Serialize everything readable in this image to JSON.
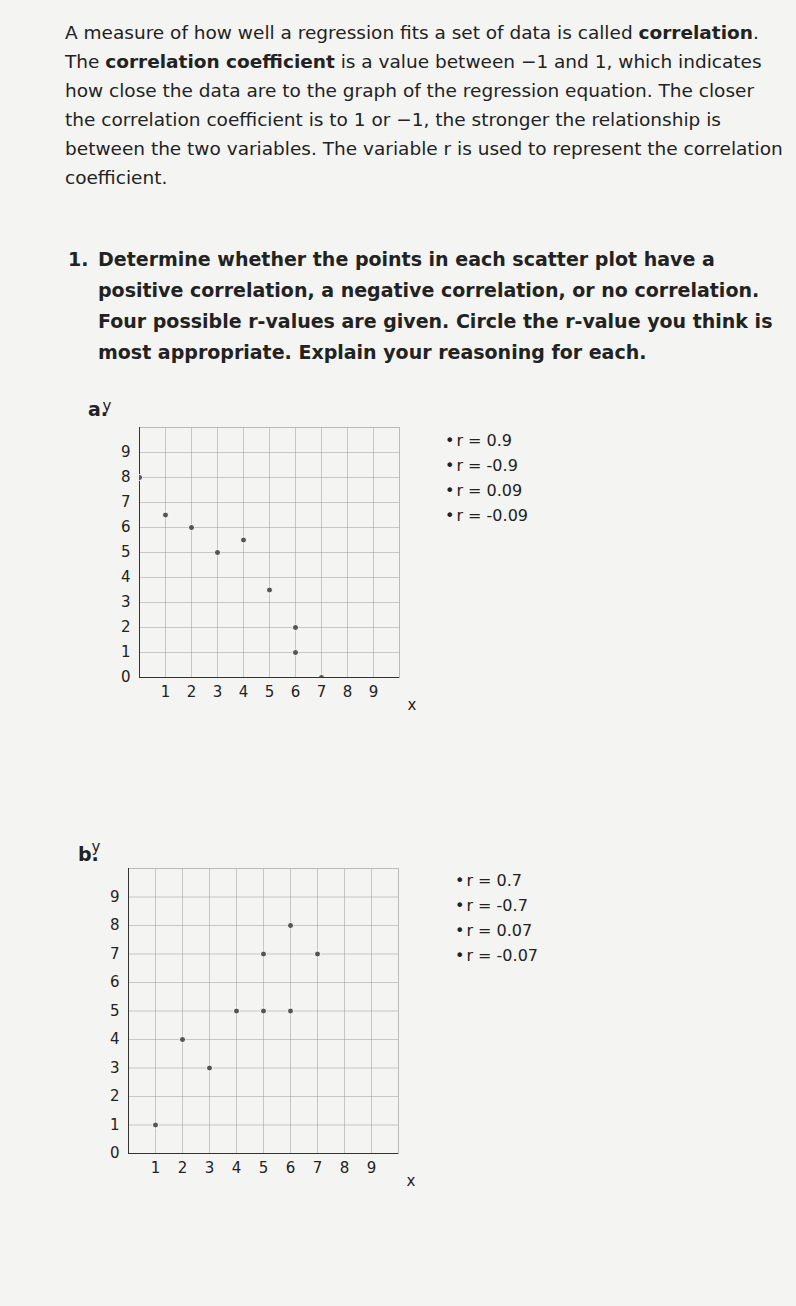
{
  "paragraph": [
    {
      "text": "A measure of how well a regression fits a set of data is called "
    },
    {
      "text": "correlation",
      "bold": true
    },
    {
      "text": ". The "
    },
    {
      "text": "correlation coefficient",
      "bold": true
    },
    {
      "text": " is a value between −1 and 1, which indicates how close the data are to the graph of the regression equation. The closer the correlation coefficient is to 1 or −1, the stronger the relationship is between the two variables. The variable r is used to represent the correlation coefficient."
    }
  ],
  "question": {
    "number": "1.",
    "text": "Determine whether the points in each scatter plot have a positive correlation, a negative correlation, or no correlation. Four possible r-values are given. Circle the r-value you think is most appropriate. Explain your reasoning for each."
  },
  "chart_data": [
    {
      "type": "scatter",
      "title": "a.",
      "x_label": "x",
      "y_label": "y",
      "x": [
        0,
        1,
        2,
        3,
        4,
        5,
        6,
        6,
        7
      ],
      "y": [
        8,
        6.5,
        6,
        5,
        5.5,
        3.5,
        2,
        1,
        0
      ],
      "xlim": [
        0,
        10
      ],
      "ylim": [
        0,
        10
      ],
      "xticks": [
        1,
        2,
        3,
        4,
        5,
        6,
        7,
        8,
        9
      ],
      "yticks": [
        0,
        1,
        2,
        3,
        4,
        5,
        6,
        7,
        8,
        9
      ],
      "grid": true,
      "color": "#555555"
    },
    {
      "type": "scatter",
      "title": "b.",
      "x_label": "x",
      "y_label": "y",
      "x": [
        1,
        2,
        3,
        4,
        5,
        6,
        5,
        6,
        7
      ],
      "y": [
        1,
        4,
        3,
        5,
        5,
        5,
        7,
        8,
        7
      ],
      "xlim": [
        0,
        10
      ],
      "ylim": [
        0,
        10
      ],
      "xticks": [
        1,
        2,
        3,
        4,
        5,
        6,
        7,
        8,
        9
      ],
      "yticks": [
        0,
        1,
        2,
        3,
        4,
        5,
        6,
        7,
        8,
        9
      ],
      "grid": true,
      "color": "#555555"
    }
  ],
  "choices": [
    [
      "r = 0.9",
      "r = -0.9",
      "r = 0.09",
      "r = -0.09"
    ],
    [
      "r = 0.7",
      "r = -0.7",
      "r = 0.07",
      "r = -0.07"
    ]
  ]
}
